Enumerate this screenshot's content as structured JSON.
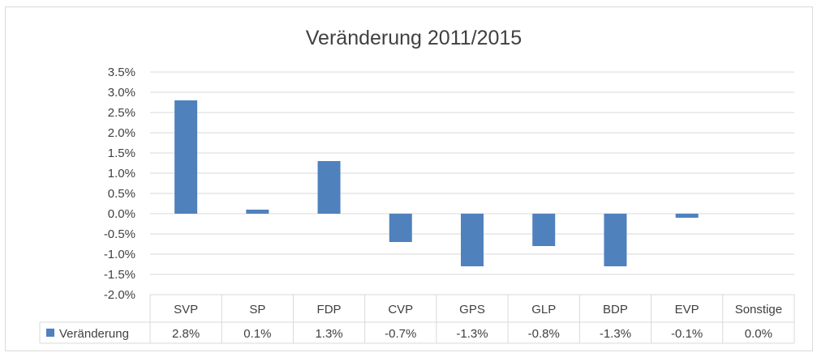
{
  "chart_data": {
    "type": "bar",
    "title": "Veränderung 2011/2015",
    "categories": [
      "SVP",
      "SP",
      "FDP",
      "CVP",
      "GPS",
      "GLP",
      "BDP",
      "EVP",
      "Sonstige"
    ],
    "series": [
      {
        "name": "Veränderung",
        "values": [
          0.028,
          0.001,
          0.013,
          -0.007,
          -0.013,
          -0.008,
          -0.013,
          -0.001,
          0.0
        ],
        "labels": [
          "2.8%",
          "0.1%",
          "1.3%",
          "-0.7%",
          "-1.3%",
          "-0.8%",
          "-1.3%",
          "-0.1%",
          "0.0%"
        ]
      }
    ],
    "ylim": [
      -0.02,
      0.035
    ],
    "yticks": [
      0.035,
      0.03,
      0.025,
      0.02,
      0.015,
      0.01,
      0.005,
      0.0,
      -0.005,
      -0.01,
      -0.015,
      -0.02
    ],
    "ytick_labels": [
      "3.5%",
      "3.0%",
      "2.5%",
      "2.0%",
      "1.5%",
      "1.0%",
      "0.5%",
      "0.0%",
      "-0.5%",
      "-1.0%",
      "-1.5%",
      "-2.0%"
    ],
    "grid": true,
    "legend": "data-table-left",
    "color": "#4f81bd",
    "xlabel": "",
    "ylabel": ""
  }
}
